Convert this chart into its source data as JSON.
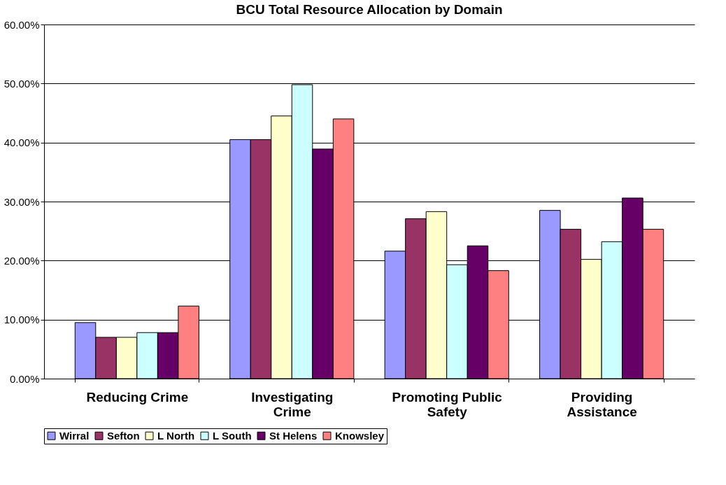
{
  "chart_data": {
    "type": "bar",
    "title": "BCU Total Resource Allocation by Domain",
    "categories": [
      "Reducing Crime",
      "Investigating\nCrime",
      "Promoting Public\nSafety",
      "Providing\nAssistance"
    ],
    "series": [
      {
        "name": "Wirral",
        "color": "#9999ff",
        "values": [
          9.5,
          40.5,
          21.6,
          28.5
        ]
      },
      {
        "name": "Sefton",
        "color": "#993366",
        "values": [
          7.0,
          40.5,
          27.1,
          25.3
        ]
      },
      {
        "name": "L North",
        "color": "#ffffcc",
        "values": [
          7.0,
          44.5,
          28.3,
          20.2
        ]
      },
      {
        "name": "L South",
        "color": "#ccffff",
        "values": [
          7.8,
          49.8,
          19.3,
          23.2
        ]
      },
      {
        "name": "St Helens",
        "color": "#660066",
        "values": [
          7.8,
          38.9,
          22.5,
          30.6
        ]
      },
      {
        "name": "Knowsley",
        "color": "#ff8080",
        "values": [
          12.3,
          44.0,
          18.3,
          25.3
        ]
      }
    ],
    "ylim": [
      0,
      60
    ],
    "yticks": [
      {
        "value": 0,
        "label": "0.00%"
      },
      {
        "value": 10,
        "label": "10.00%"
      },
      {
        "value": 20,
        "label": "20.00%"
      },
      {
        "value": 30,
        "label": "30.00%"
      },
      {
        "value": 40,
        "label": "40.00%"
      },
      {
        "value": 50,
        "label": "50.00%"
      },
      {
        "value": 60,
        "label": "60.00%"
      }
    ],
    "grid": "y",
    "legend": "bottom"
  }
}
